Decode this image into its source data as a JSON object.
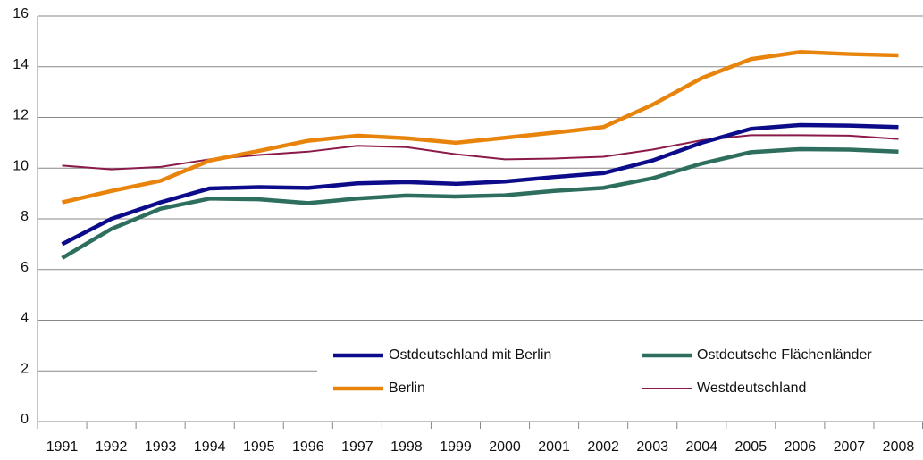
{
  "chart_data": {
    "type": "line",
    "categories": [
      "1991",
      "1992",
      "1993",
      "1994",
      "1995",
      "1996",
      "1997",
      "1998",
      "1999",
      "2000",
      "2001",
      "2002",
      "2003",
      "2004",
      "2005",
      "2006",
      "2007",
      "2008"
    ],
    "series": [
      {
        "name": "Ostdeutschland mit Berlin",
        "color": "#0c0c8a",
        "line_width": 4.5,
        "values": [
          7.0,
          8.0,
          8.65,
          9.2,
          9.25,
          9.22,
          9.4,
          9.45,
          9.38,
          9.47,
          9.65,
          9.8,
          10.3,
          11.0,
          11.55,
          11.7,
          11.68,
          11.62
        ]
      },
      {
        "name": "Ostdeutsche Flächenländer",
        "color": "#2e6e5e",
        "line_width": 4.5,
        "values": [
          6.45,
          7.6,
          8.4,
          8.8,
          8.77,
          8.62,
          8.8,
          8.92,
          8.88,
          8.93,
          9.1,
          9.22,
          9.6,
          10.18,
          10.63,
          10.75,
          10.73,
          10.65
        ]
      },
      {
        "name": "Berlin",
        "color": "#e8840c",
        "line_width": 4.5,
        "values": [
          8.65,
          9.1,
          9.5,
          10.3,
          10.68,
          11.08,
          11.28,
          11.18,
          11.0,
          11.2,
          11.4,
          11.62,
          12.5,
          13.55,
          14.3,
          14.58,
          14.5,
          14.45
        ]
      },
      {
        "name": "Westdeutschland",
        "color": "#8b1a4a",
        "line_width": 2,
        "values": [
          10.1,
          9.95,
          10.05,
          10.35,
          10.52,
          10.65,
          10.88,
          10.83,
          10.55,
          10.35,
          10.38,
          10.45,
          10.73,
          11.1,
          11.3,
          11.3,
          11.28,
          11.15
        ]
      }
    ],
    "ylim": [
      0,
      16
    ],
    "yticks": [
      0,
      2,
      4,
      6,
      8,
      10,
      12,
      14,
      16
    ],
    "grid": true,
    "legend": "lower right"
  }
}
